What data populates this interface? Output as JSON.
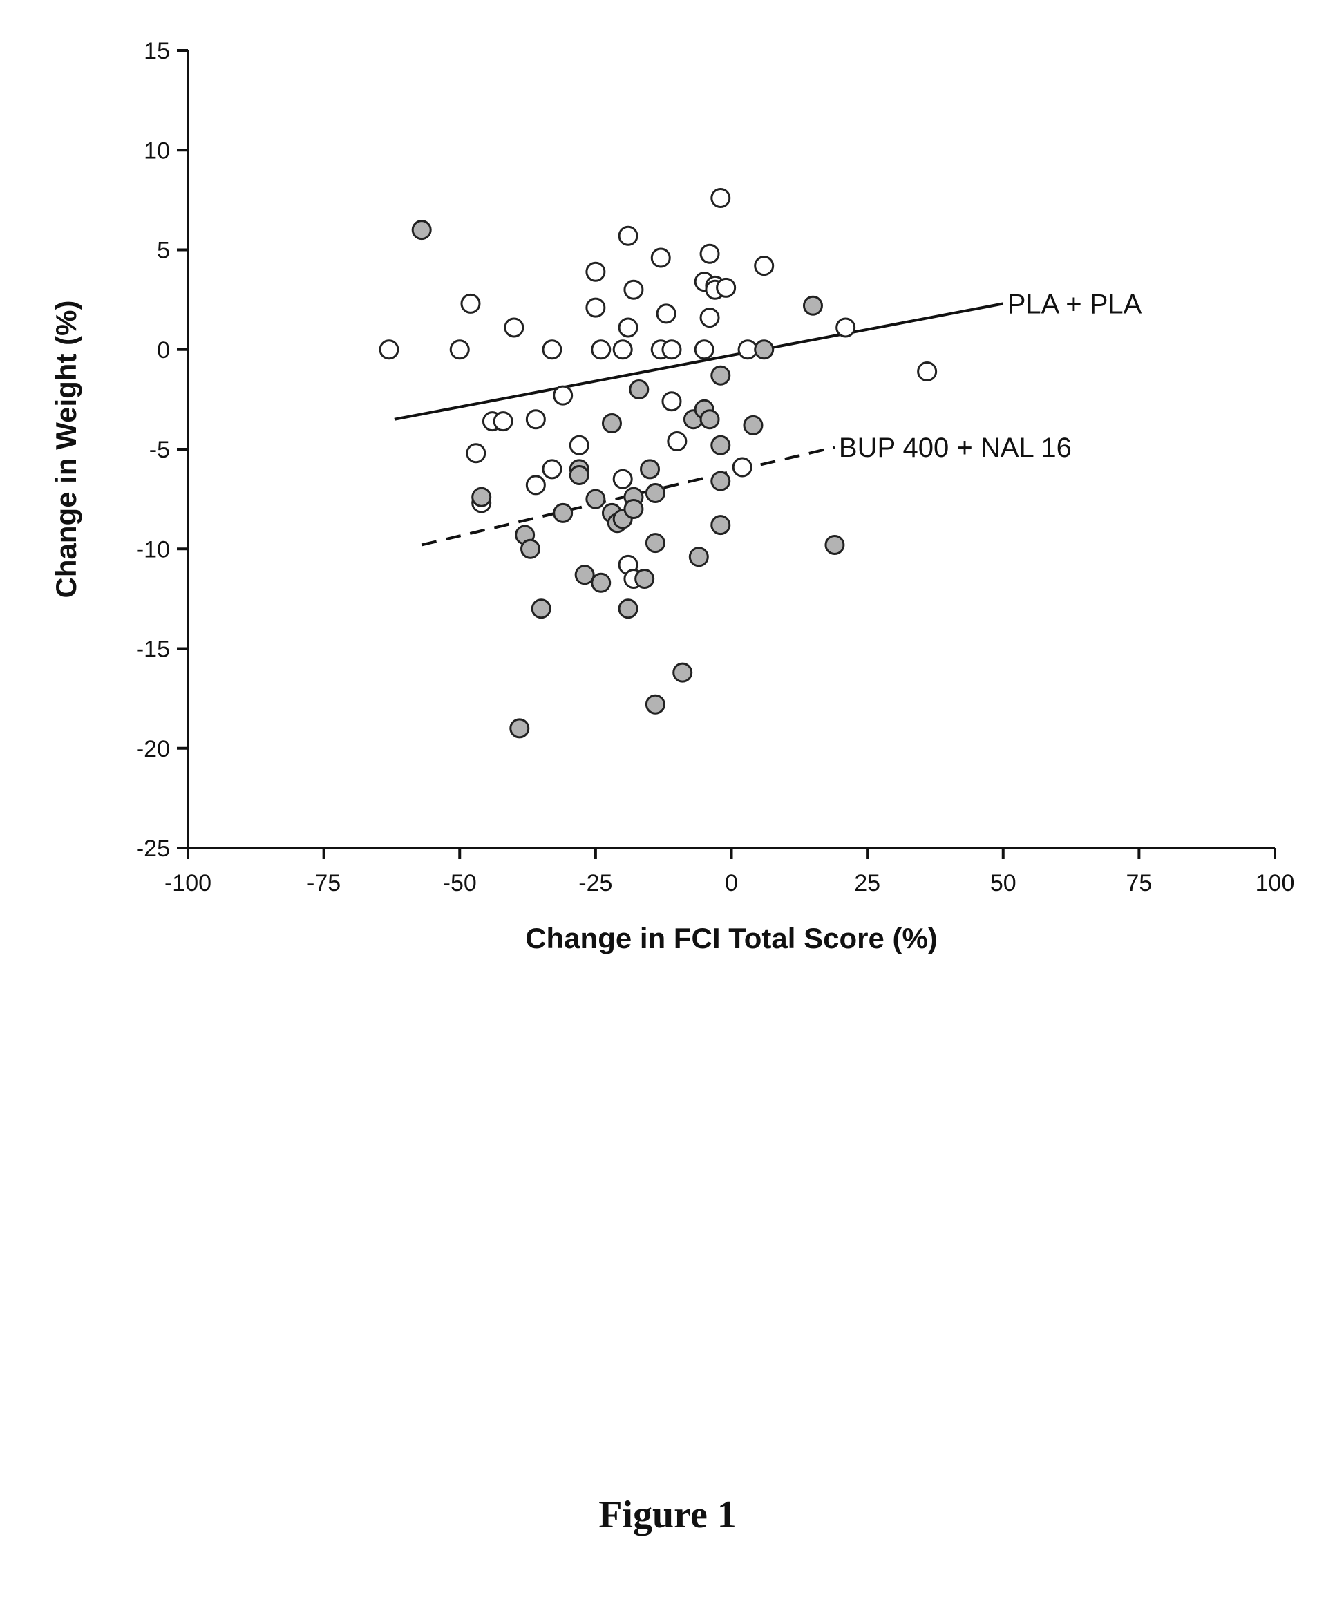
{
  "caption": "Figure 1",
  "colors": {
    "axis": "#111111",
    "open_fill": "#ffffff",
    "filled_fill": "#b3b3b3",
    "marker_stroke": "#222222"
  },
  "chart_data": {
    "type": "scatter",
    "title": "",
    "xlabel": "Change in FCI Total Score (%)",
    "ylabel": "Change in Weight (%)",
    "xlim": [
      -100,
      100
    ],
    "ylim": [
      -25,
      15
    ],
    "x_ticks": [
      "-100",
      "-75",
      "-50",
      "-25",
      "0",
      "25",
      "50",
      "75",
      "100"
    ],
    "y_ticks": [
      "15",
      "10",
      "5",
      "0",
      "-5",
      "-10",
      "-15",
      "-20",
      "-25"
    ],
    "series": [
      {
        "name": "PLA + PLA",
        "marker": "open",
        "points": [
          [
            -63,
            0
          ],
          [
            -50,
            0
          ],
          [
            -48,
            2.3
          ],
          [
            -40,
            1.1
          ],
          [
            -44,
            -3.6
          ],
          [
            -42,
            -3.6
          ],
          [
            -36,
            -3.5
          ],
          [
            -33,
            0
          ],
          [
            -31,
            -2.3
          ],
          [
            -28,
            -4.8
          ],
          [
            -25,
            3.9
          ],
          [
            -25,
            2.1
          ],
          [
            -24,
            0
          ],
          [
            -20,
            -6.5
          ],
          [
            -20,
            0
          ],
          [
            -19,
            5.7
          ],
          [
            -19,
            1.1
          ],
          [
            -18,
            3
          ],
          [
            -13,
            4.6
          ],
          [
            -13,
            0
          ],
          [
            -12,
            1.8
          ],
          [
            -11,
            0
          ],
          [
            -11,
            -2.6
          ],
          [
            -10,
            -4.6
          ],
          [
            -5,
            0
          ],
          [
            -5,
            3.4
          ],
          [
            -4,
            4.8
          ],
          [
            -4,
            1.6
          ],
          [
            -3,
            3.2
          ],
          [
            -3,
            3
          ],
          [
            -2,
            7.6
          ],
          [
            -1,
            3.1
          ],
          [
            2,
            -5.9
          ],
          [
            3,
            0
          ],
          [
            6,
            4.2
          ],
          [
            21,
            1.1
          ],
          [
            36,
            -1.1
          ],
          [
            -33,
            -6
          ],
          [
            -36,
            -6.8
          ],
          [
            -46,
            -7.7
          ],
          [
            -47,
            -5.2
          ],
          [
            -19,
            -10.8
          ],
          [
            -18,
            -11.5
          ]
        ]
      },
      {
        "name": "BUP 400 + NAL 16",
        "marker": "filled",
        "points": [
          [
            -57,
            6
          ],
          [
            -46,
            -7.4
          ],
          [
            -38,
            -9.3
          ],
          [
            -37,
            -10
          ],
          [
            -35,
            -13
          ],
          [
            -31,
            -8.2
          ],
          [
            -28,
            -6
          ],
          [
            -28,
            -6.3
          ],
          [
            -27,
            -11.3
          ],
          [
            -25,
            -7.5
          ],
          [
            -24,
            -11.7
          ],
          [
            -22,
            -3.7
          ],
          [
            -22,
            -8.2
          ],
          [
            -21,
            -8.7
          ],
          [
            -20,
            -8.5
          ],
          [
            -19,
            -13
          ],
          [
            -18,
            -7.4
          ],
          [
            -18,
            -8
          ],
          [
            -17,
            -2
          ],
          [
            -16,
            -11.5
          ],
          [
            -15,
            -6
          ],
          [
            -14,
            -7.2
          ],
          [
            -14,
            -9.7
          ],
          [
            -14,
            -17.8
          ],
          [
            -9,
            -16.2
          ],
          [
            -7,
            -3.5
          ],
          [
            -6,
            -10.4
          ],
          [
            -5,
            -3
          ],
          [
            -4,
            -3.5
          ],
          [
            -2,
            -1.3
          ],
          [
            -2,
            -8.8
          ],
          [
            -2,
            -6.6
          ],
          [
            -2,
            -4.8
          ],
          [
            4,
            -3.8
          ],
          [
            6,
            0
          ],
          [
            15,
            2.2
          ],
          [
            19,
            -9.8
          ],
          [
            -39,
            -19
          ]
        ]
      }
    ],
    "trend_lines": [
      {
        "label": "PLA + PLA",
        "style": "solid",
        "x": [
          -62,
          50
        ],
        "y": [
          -3.5,
          2.3
        ]
      },
      {
        "label": "BUP 400 + NAL 16",
        "style": "dashed",
        "x": [
          -57,
          19
        ],
        "y": [
          -9.8,
          -4.9
        ]
      }
    ],
    "grid": false,
    "legend": "none"
  }
}
